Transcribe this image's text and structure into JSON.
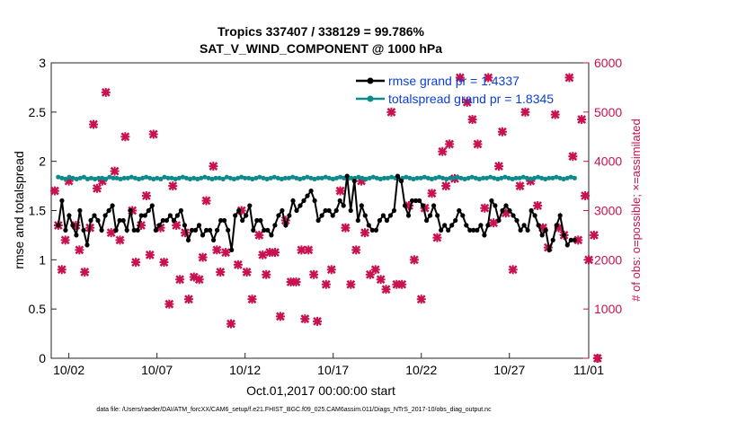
{
  "chart_data": {
    "type": "line",
    "title_line1": "Tropics 337407 / 338129 = 99.786%",
    "title_line2": "SAT_V_WIND_COMPONENT @ 1000 hPa",
    "xlabel": "Oct.01,2017 00:00:00 start",
    "ylabel_left": "rmse and totalspread",
    "ylabel_right": "# of obs: o=possible; ×=assimilated",
    "xlim": [
      0.5,
      31
    ],
    "ylim_left": [
      0,
      3
    ],
    "ylim_right": [
      0,
      6000
    ],
    "x_ticks": [
      1.5,
      6.5,
      11.5,
      16.5,
      21.5,
      26.5,
      31
    ],
    "x_tick_labels": [
      "10/02",
      "10/07",
      "10/12",
      "10/17",
      "10/22",
      "10/27",
      "11/01"
    ],
    "y_left_ticks": [
      0,
      0.5,
      1,
      1.5,
      2,
      2.5,
      3
    ],
    "y_left_tick_labels": [
      "0",
      "0.5",
      "1",
      "1.5",
      "2",
      "2.5",
      "3"
    ],
    "y_right_ticks": [
      0,
      1000,
      2000,
      3000,
      4000,
      5000,
      6000
    ],
    "y_right_tick_labels": [
      "0",
      "1000",
      "2000",
      "3000",
      "4000",
      "5000",
      "6000"
    ],
    "grid": false,
    "legend_position": "top-right",
    "series": [
      {
        "name": "rmse",
        "legend_label": "rmse grand pr = 1.4337",
        "color": "#000000",
        "marker": "star",
        "axis": "left",
        "values": [
          1.35,
          1.6,
          1.3,
          1.45,
          1.35,
          1.25,
          1.5,
          1.3,
          1.15,
          1.4,
          1.45,
          1.4,
          1.3,
          1.45,
          1.5,
          1.55,
          1.3,
          1.4,
          1.4,
          1.3,
          1.5,
          1.3,
          1.3,
          1.45,
          1.45,
          1.5,
          1.55,
          1.3,
          1.35,
          1.4,
          1.4,
          1.45,
          1.4,
          1.45,
          1.5,
          1.35,
          1.2,
          1.3,
          1.3,
          1.35,
          1.25,
          1.3,
          1.3,
          1.2,
          1.3,
          1.4,
          1.4,
          1.3,
          1.1,
          1.45,
          1.5,
          1.4,
          1.45,
          1.55,
          1.3,
          1.4,
          1.4,
          1.3,
          1.3,
          1.25,
          1.35,
          1.45,
          1.5,
          1.35,
          1.45,
          1.6,
          1.5,
          1.55,
          1.6,
          1.65,
          1.7,
          1.6,
          1.4,
          1.45,
          1.5,
          1.5,
          1.45,
          1.5,
          1.6,
          1.55,
          1.85,
          1.5,
          1.8,
          1.4,
          1.55,
          1.45,
          1.35,
          1.3,
          1.3,
          1.4,
          1.45,
          1.4,
          1.45,
          1.5,
          1.85,
          1.8,
          1.55,
          1.45,
          1.6,
          1.6,
          1.6,
          1.55,
          1.4,
          1.45,
          1.55,
          1.45,
          1.3,
          1.35,
          1.3,
          1.35,
          1.4,
          1.5,
          1.45,
          1.35,
          1.3,
          1.3,
          1.3,
          1.35,
          1.25,
          1.35,
          1.6,
          1.55,
          1.4,
          1.5,
          1.55,
          1.5,
          1.45,
          1.4,
          1.3,
          1.35,
          1.3,
          1.5,
          1.45,
          1.35,
          1.25,
          1.3,
          1.1,
          1.2,
          1.35,
          1.45,
          1.25,
          1.15,
          1.2,
          1.2
        ]
      },
      {
        "name": "totalspread",
        "legend_label": "totalspread grand pr = 1.8345",
        "color": "#0e8a8a",
        "marker": "circle",
        "axis": "left",
        "values": [
          1.84,
          1.83,
          1.82,
          1.84,
          1.83,
          1.82,
          1.83,
          1.84,
          1.82,
          1.83,
          1.82,
          1.83,
          1.83,
          1.82,
          1.84,
          1.83,
          1.83,
          1.82,
          1.83,
          1.83,
          1.84,
          1.83,
          1.82,
          1.83,
          1.84,
          1.83,
          1.82,
          1.83,
          1.82,
          1.84,
          1.83,
          1.83,
          1.82,
          1.83,
          1.84,
          1.83,
          1.82,
          1.83,
          1.82,
          1.83,
          1.84,
          1.83,
          1.82,
          1.83,
          1.83,
          1.82,
          1.84,
          1.83,
          1.82,
          1.83,
          1.84,
          1.83,
          1.83,
          1.82,
          1.83,
          1.84,
          1.83,
          1.82,
          1.83,
          1.84,
          1.83,
          1.82,
          1.83,
          1.83,
          1.84,
          1.83,
          1.82,
          1.83,
          1.84,
          1.83,
          1.82,
          1.83,
          1.83,
          1.84,
          1.83,
          1.82,
          1.83,
          1.84,
          1.83,
          1.82,
          1.83,
          1.83,
          1.84,
          1.83,
          1.82,
          1.83,
          1.84,
          1.83,
          1.82,
          1.83,
          1.83,
          1.84,
          1.83,
          1.82,
          1.83,
          1.84,
          1.83,
          1.82,
          1.83,
          1.83,
          1.84,
          1.83,
          1.82,
          1.83,
          1.84,
          1.83,
          1.82,
          1.83,
          1.83,
          1.84,
          1.83,
          1.82,
          1.83,
          1.84,
          1.83,
          1.82,
          1.83,
          1.83,
          1.84,
          1.83,
          1.82,
          1.83,
          1.84,
          1.83,
          1.82,
          1.83,
          1.83,
          1.84,
          1.83,
          1.82,
          1.83,
          1.84,
          1.83,
          1.82,
          1.83,
          1.83,
          1.84,
          1.83,
          1.82,
          1.83,
          1.84,
          1.83
        ]
      },
      {
        "name": "obs assimilated",
        "color": "#c8124f",
        "marker": "cross",
        "axis": "right",
        "points": [
          [
            0.7,
            3400
          ],
          [
            0.9,
            2700
          ],
          [
            1.1,
            1800
          ],
          [
            1.3,
            2400
          ],
          [
            1.5,
            3600
          ],
          [
            1.9,
            2700
          ],
          [
            2.1,
            2200
          ],
          [
            2.4,
            1750
          ],
          [
            2.7,
            2650
          ],
          [
            2.9,
            4750
          ],
          [
            3.1,
            3450
          ],
          [
            3.4,
            3600
          ],
          [
            3.6,
            5400
          ],
          [
            3.9,
            2550
          ],
          [
            4.1,
            3800
          ],
          [
            4.4,
            2400
          ],
          [
            4.7,
            4500
          ],
          [
            5.1,
            3000
          ],
          [
            5.3,
            1950
          ],
          [
            5.6,
            2700
          ],
          [
            5.9,
            3300
          ],
          [
            6.1,
            2100
          ],
          [
            6.3,
            4550
          ],
          [
            6.7,
            2650
          ],
          [
            6.9,
            1950
          ],
          [
            7.2,
            1100
          ],
          [
            7.4,
            3500
          ],
          [
            7.6,
            2700
          ],
          [
            7.8,
            1600
          ],
          [
            8.1,
            2550
          ],
          [
            8.3,
            1200
          ],
          [
            8.6,
            1650
          ],
          [
            8.9,
            1600
          ],
          [
            9.1,
            2050
          ],
          [
            9.3,
            3200
          ],
          [
            9.7,
            3900
          ],
          [
            9.9,
            2200
          ],
          [
            10.1,
            1750
          ],
          [
            10.4,
            2150
          ],
          [
            10.7,
            700
          ],
          [
            11.1,
            1900
          ],
          [
            11.3,
            3000
          ],
          [
            11.6,
            1750
          ],
          [
            11.9,
            1200
          ],
          [
            12.3,
            2500
          ],
          [
            12.5,
            2100
          ],
          [
            12.7,
            1700
          ],
          [
            12.9,
            2150
          ],
          [
            13.2,
            2150
          ],
          [
            13.5,
            850
          ],
          [
            13.8,
            2800
          ],
          [
            14.1,
            1550
          ],
          [
            14.4,
            1550
          ],
          [
            14.7,
            2200
          ],
          [
            14.9,
            800
          ],
          [
            15.1,
            2200
          ],
          [
            15.4,
            1700
          ],
          [
            15.6,
            750
          ],
          [
            16.1,
            1500
          ],
          [
            16.4,
            1800
          ],
          [
            16.9,
            3400
          ],
          [
            17.2,
            2650
          ],
          [
            17.5,
            1500
          ],
          [
            17.8,
            2200
          ],
          [
            18.1,
            3600
          ],
          [
            18.3,
            2550
          ],
          [
            18.6,
            1700
          ],
          [
            18.9,
            1800
          ],
          [
            19.2,
            1600
          ],
          [
            19.5,
            1400
          ],
          [
            19.8,
            5000
          ],
          [
            20.1,
            1500
          ],
          [
            20.4,
            1500
          ],
          [
            20.8,
            3100
          ],
          [
            21.1,
            2000
          ],
          [
            21.5,
            1200
          ],
          [
            21.7,
            3050
          ],
          [
            22.1,
            3350
          ],
          [
            22.4,
            2450
          ],
          [
            22.7,
            4200
          ],
          [
            22.9,
            3500
          ],
          [
            23.1,
            4350
          ],
          [
            23.4,
            3650
          ],
          [
            23.7,
            5700
          ],
          [
            24.1,
            5200
          ],
          [
            24.4,
            4850
          ],
          [
            24.7,
            4350
          ],
          [
            25.1,
            3050
          ],
          [
            25.3,
            5700
          ],
          [
            25.6,
            2750
          ],
          [
            25.9,
            3900
          ],
          [
            26.1,
            4600
          ],
          [
            26.3,
            2950
          ],
          [
            26.7,
            1800
          ],
          [
            27.1,
            3500
          ],
          [
            27.4,
            5000
          ],
          [
            27.7,
            3600
          ],
          [
            28.1,
            3100
          ],
          [
            28.4,
            2650
          ],
          [
            28.7,
            2250
          ],
          [
            29.1,
            4950
          ],
          [
            29.3,
            2650
          ],
          [
            29.6,
            2500
          ],
          [
            29.9,
            5700
          ],
          [
            30.1,
            4100
          ],
          [
            30.4,
            2400
          ],
          [
            30.6,
            4850
          ],
          [
            30.8,
            3300
          ],
          [
            31.0,
            2000
          ],
          [
            31.3,
            2500
          ],
          [
            31.5,
            0
          ]
        ]
      }
    ]
  },
  "footnote": "data file: /Users/raeder/DAI/ATM_forcXX/CAM6_setup/f.e21.FHIST_BGC.f09_025.CAM6assim.011/Diags_NTrS_2017-10/obs_diag_output.nc"
}
